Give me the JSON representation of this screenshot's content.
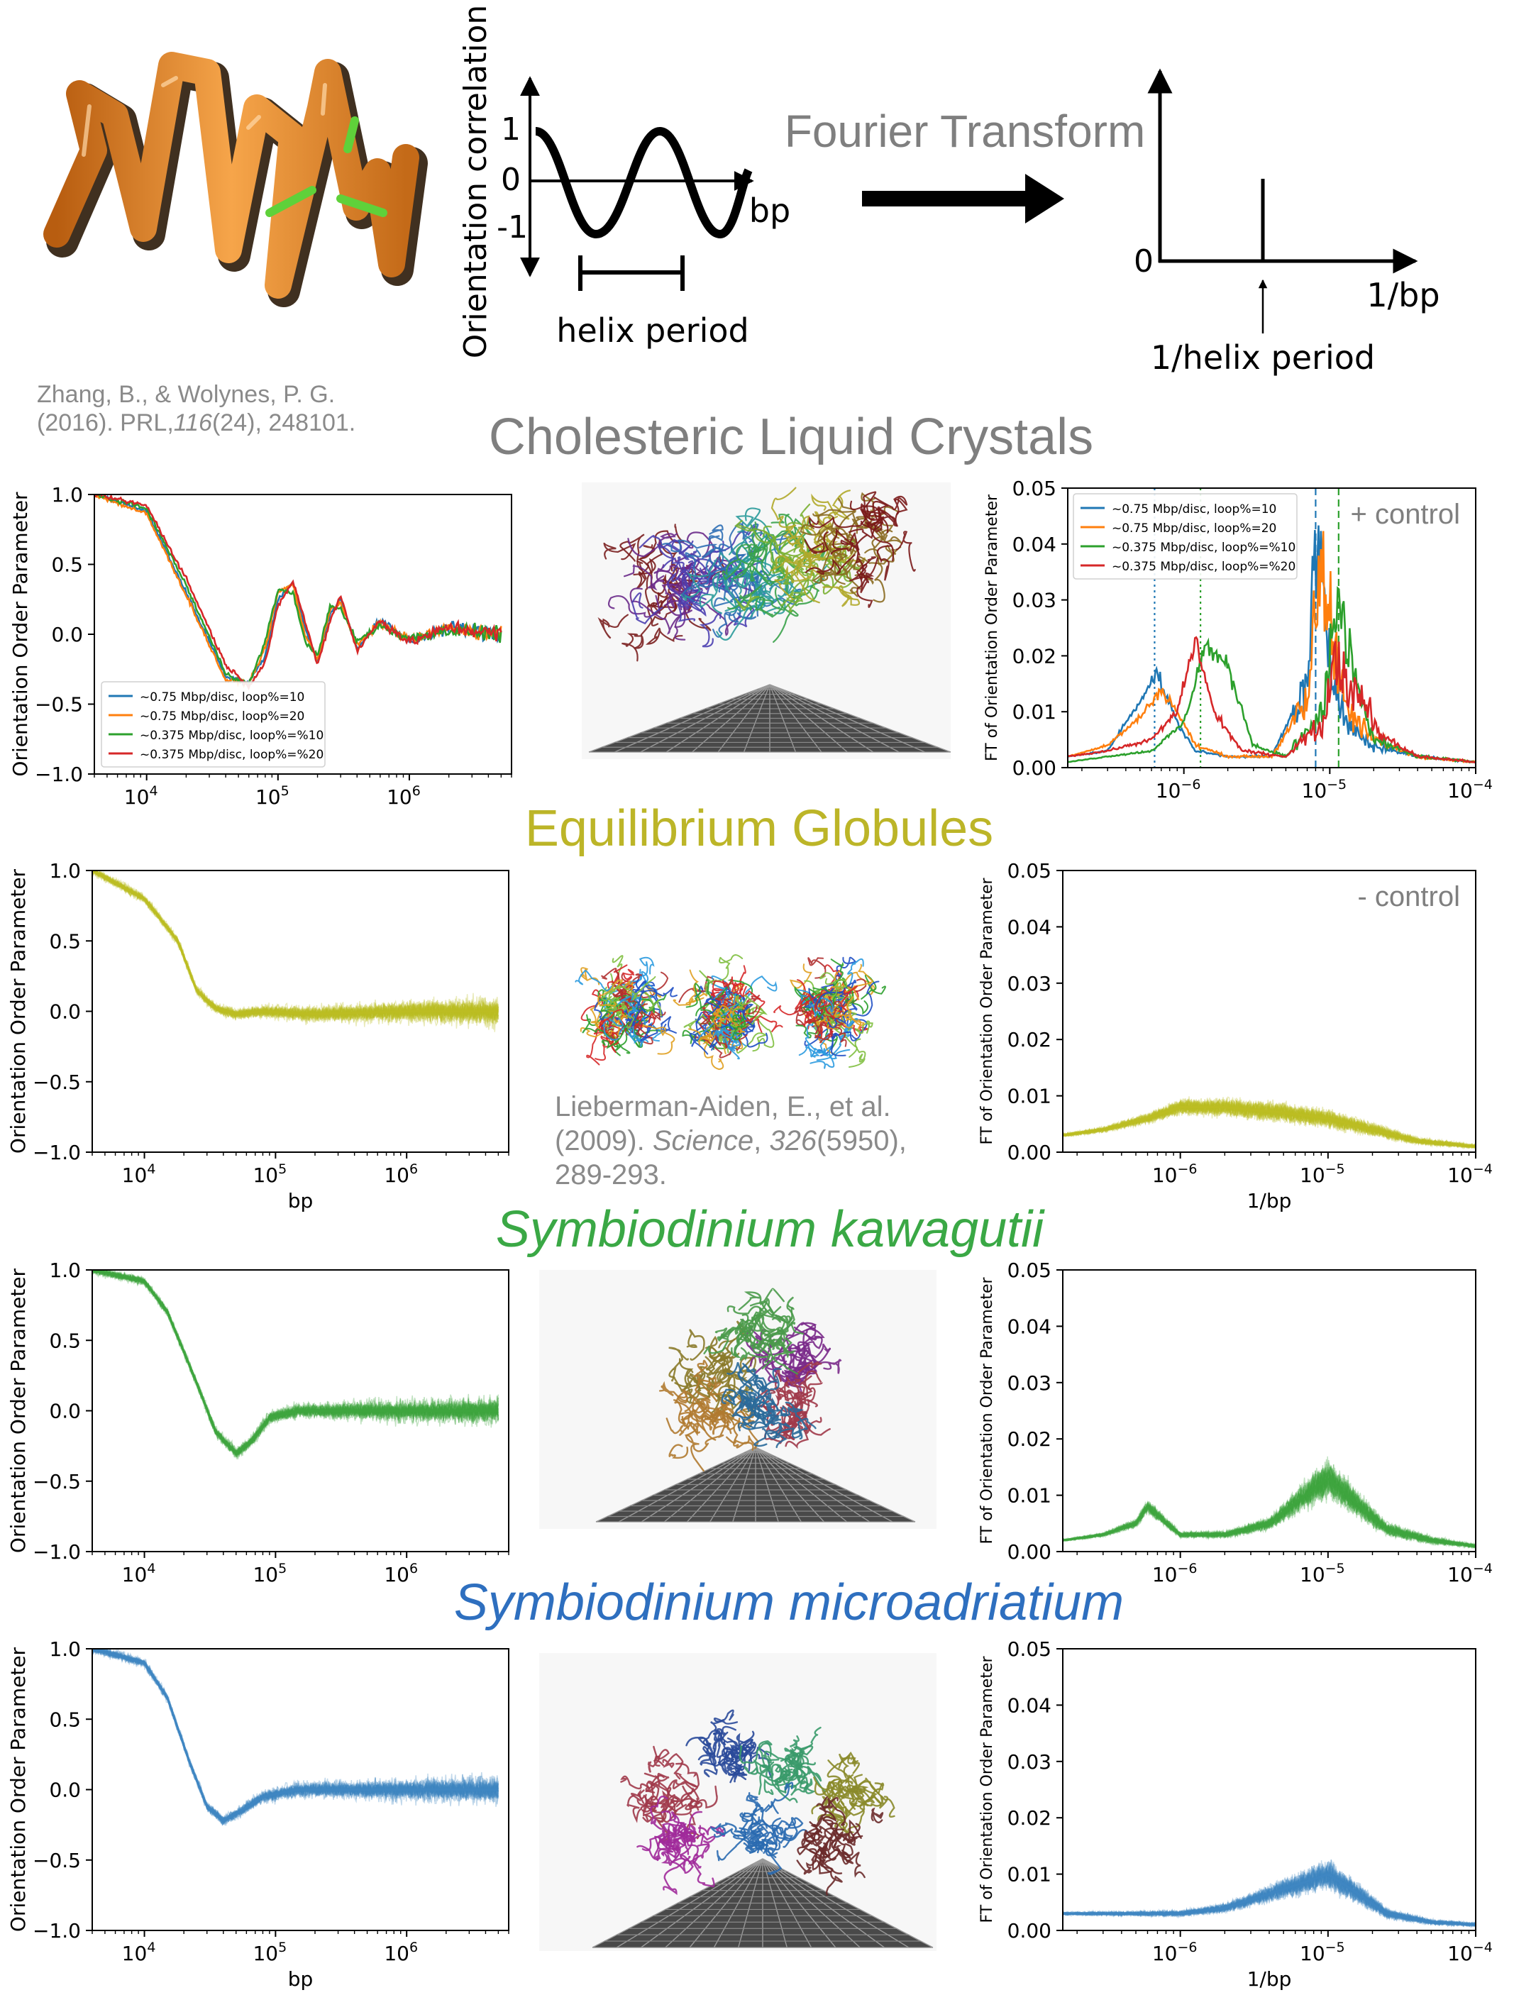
{
  "header": {
    "schematic_ylabel": "Orientation correlation",
    "schematic_xlabel": "bp",
    "schematic_ticks": [
      "1",
      "0",
      "-1"
    ],
    "helix_period_label": "helix period",
    "fourier_label": "Fourier Transform",
    "ft_zero": "0",
    "ft_xlabel": "1/bp",
    "ft_peak_label": "1/helix period",
    "citation_zhang": {
      "line1": "Zhang, B., & Wolynes, P. G.",
      "line2_pre": "(2016). PRL,",
      "line2_italic": "116",
      "line2_post": "(24), 248101."
    },
    "citation_lieberman": {
      "line1": "Lieberman-Aiden, E., et al.",
      "line2_pre": "(2009). ",
      "line2_italic1": "Science",
      "line2_mid": ", ",
      "line2_italic2": "326",
      "line2_post": "(5950),",
      "line3": "289-293."
    }
  },
  "colors": {
    "orange": "#f08c28",
    "blue_title": "#2e6fbf",
    "green_title": "#3aa845",
    "olive_title": "#bcb528",
    "gray_title": "#7f7f7f",
    "tab_blue": "#1f77b4",
    "tab_orange": "#ff7f0e",
    "tab_green": "#2ca02c",
    "tab_red": "#d62728",
    "olive": "#bcbd22",
    "green": "#3ea53e",
    "blue": "#3f86c2"
  },
  "rows": [
    {
      "title": "Cholesteric Liquid Crystals",
      "title_color": "#7f7f7f",
      "title_italic": false,
      "annotation": "+ control",
      "kind": "multi"
    },
    {
      "title": "Equilibrium Globules",
      "title_color": "#bcb528",
      "title_italic": false,
      "annotation": "- control",
      "kind": "olive"
    },
    {
      "title": "Symbiodinium kawagutii",
      "title_color": "#3aa845",
      "title_italic": true,
      "annotation": "",
      "kind": "green"
    },
    {
      "title": "Symbiodinium microadriatium",
      "title_color": "#2e6fbf",
      "title_italic": true,
      "annotation": "",
      "kind": "blue"
    }
  ],
  "chart_data": [
    {
      "type": "line",
      "title": "",
      "xlabel": "",
      "ylabel": "Orientation Order Parameter",
      "xscale": "log",
      "xlim": [
        4000,
        6000000
      ],
      "ylim": [
        -1.0,
        1.0
      ],
      "yticks": [
        "1.0",
        "0.5",
        "0.0",
        "−0.5",
        "−1.0"
      ],
      "xticks": [
        "10^4",
        "10^5",
        "10^6"
      ],
      "legend_position": "lower-left",
      "series": [
        {
          "name": "~0.75 Mbp/disc, loop%=10",
          "color": "#1f77b4",
          "x": [
            4000,
            10000,
            20000,
            40000,
            60000,
            80000,
            100000,
            130000,
            160000,
            200000,
            250000,
            300000,
            400000,
            600000,
            1000000,
            2000000,
            5000000
          ],
          "y": [
            1.0,
            0.88,
            0.3,
            -0.3,
            -0.35,
            -0.15,
            0.25,
            0.38,
            0.05,
            -0.2,
            0.15,
            0.25,
            -0.1,
            0.1,
            -0.05,
            0.05,
            0.0
          ]
        },
        {
          "name": "~0.75 Mbp/disc, loop%=20",
          "color": "#ff7f0e",
          "x": [
            4000,
            10000,
            20000,
            40000,
            60000,
            80000,
            100000,
            130000,
            160000,
            200000,
            250000,
            300000,
            400000,
            600000,
            1000000,
            2000000,
            5000000
          ],
          "y": [
            1.0,
            0.86,
            0.28,
            -0.33,
            -0.35,
            -0.1,
            0.3,
            0.36,
            0.0,
            -0.18,
            0.18,
            0.22,
            -0.08,
            0.08,
            -0.04,
            0.04,
            0.0
          ]
        },
        {
          "name": "~0.375 Mbp/disc, loop%=%10",
          "color": "#2ca02c",
          "x": [
            4000,
            10000,
            20000,
            40000,
            60000,
            80000,
            100000,
            130000,
            160000,
            200000,
            250000,
            300000,
            400000,
            600000,
            1000000,
            2000000,
            5000000
          ],
          "y": [
            1.0,
            0.9,
            0.35,
            -0.28,
            -0.36,
            -0.05,
            0.32,
            0.3,
            -0.05,
            -0.15,
            0.2,
            0.18,
            -0.05,
            0.06,
            -0.03,
            0.03,
            0.0
          ]
        },
        {
          "name": "~0.375 Mbp/disc, loop%=%20",
          "color": "#d62728",
          "x": [
            4000,
            10000,
            20000,
            40000,
            60000,
            80000,
            100000,
            130000,
            160000,
            200000,
            250000,
            300000,
            400000,
            600000,
            1000000,
            2000000,
            5000000
          ],
          "y": [
            1.0,
            0.92,
            0.4,
            -0.22,
            -0.37,
            -0.2,
            0.2,
            0.38,
            0.1,
            -0.22,
            0.1,
            0.28,
            -0.12,
            0.1,
            -0.06,
            0.05,
            0.0
          ]
        }
      ]
    },
    {
      "type": "line",
      "title": "",
      "xlabel": "",
      "ylabel": "FT of Orientation Order Parameter",
      "xscale": "log",
      "xlim": [
        1.6e-07,
        0.0001
      ],
      "ylim": [
        0,
        0.05
      ],
      "yticks": [
        "0.05",
        "0.04",
        "0.03",
        "0.02",
        "0.01",
        "0.00"
      ],
      "xticks": [
        "10^-6",
        "10^-5",
        "10^-4"
      ],
      "legend_position": "top-left",
      "annotation": "+ control",
      "vertical_lines": [
        {
          "x": 6.3e-07,
          "color": "#1f77b4",
          "style": "dotted"
        },
        {
          "x": 1.3e-06,
          "color": "#2ca02c",
          "style": "dotted"
        },
        {
          "x": 8e-06,
          "color": "#1f77b4",
          "style": "dashed"
        },
        {
          "x": 1.15e-05,
          "color": "#2ca02c",
          "style": "dashed"
        }
      ],
      "series": [
        {
          "name": "~0.75 Mbp/disc, loop%=10",
          "color": "#1f77b4",
          "x": [
            1.6e-07,
            3e-07,
            5e-07,
            6.5e-07,
            9e-07,
            1.2e-06,
            2e-06,
            4e-06,
            7e-06,
            8e-06,
            1e-05,
            1.3e-05,
            2e-05,
            4e-05,
            0.0001
          ],
          "y": [
            0.002,
            0.003,
            0.012,
            0.017,
            0.008,
            0.003,
            0.002,
            0.002,
            0.015,
            0.04,
            0.02,
            0.008,
            0.004,
            0.002,
            0.001
          ]
        },
        {
          "name": "~0.75 Mbp/disc, loop%=20",
          "color": "#ff7f0e",
          "x": [
            1.6e-07,
            3e-07,
            5e-07,
            7e-07,
            9e-07,
            1.2e-06,
            2e-06,
            4e-06,
            7e-06,
            8.5e-06,
            1e-05,
            1.3e-05,
            2e-05,
            4e-05,
            0.0001
          ],
          "y": [
            0.002,
            0.004,
            0.009,
            0.014,
            0.01,
            0.004,
            0.002,
            0.002,
            0.012,
            0.037,
            0.028,
            0.01,
            0.005,
            0.002,
            0.001
          ]
        },
        {
          "name": "~0.375 Mbp/disc, loop%=%10",
          "color": "#2ca02c",
          "x": [
            1.6e-07,
            3e-07,
            6e-07,
            1e-06,
            1.4e-06,
            2e-06,
            3e-06,
            5e-06,
            9e-06,
            1.15e-05,
            1.3e-05,
            1.6e-05,
            2e-05,
            4e-05,
            0.0001
          ],
          "y": [
            0.001,
            0.002,
            0.003,
            0.008,
            0.022,
            0.018,
            0.004,
            0.002,
            0.01,
            0.033,
            0.02,
            0.012,
            0.005,
            0.002,
            0.001
          ]
        },
        {
          "name": "~0.375 Mbp/disc, loop%=%20",
          "color": "#d62728",
          "x": [
            1.6e-07,
            3e-07,
            6e-07,
            9e-07,
            1.2e-06,
            1.6e-06,
            2.5e-06,
            5e-06,
            9e-06,
            1.1e-05,
            1.3e-05,
            1.6e-05,
            2.2e-05,
            4e-05,
            0.0001
          ],
          "y": [
            0.002,
            0.003,
            0.005,
            0.01,
            0.023,
            0.01,
            0.003,
            0.002,
            0.008,
            0.022,
            0.015,
            0.013,
            0.006,
            0.002,
            0.001
          ]
        }
      ]
    },
    {
      "type": "line",
      "title": "",
      "xlabel": "bp",
      "ylabel": "Orientation Order Parameter",
      "xscale": "log",
      "xlim": [
        4000,
        6000000
      ],
      "ylim": [
        -1.0,
        1.0
      ],
      "yticks": [
        "1.0",
        "0.5",
        "0.0",
        "−0.5",
        "−1.0"
      ],
      "xticks": [
        "10^4",
        "10^5",
        "10^6"
      ],
      "series": [
        {
          "color": "#bcbd22",
          "x": [
            4000,
            10000,
            18000,
            25000,
            35000,
            50000,
            80000,
            200000,
            1000000,
            5000000
          ],
          "y": [
            1.0,
            0.8,
            0.5,
            0.15,
            0.02,
            -0.02,
            0.0,
            -0.02,
            0.0,
            0.0
          ]
        }
      ]
    },
    {
      "type": "line",
      "title": "",
      "xlabel": "1/bp",
      "ylabel": "FT of Orientation Order Parameter",
      "xscale": "log",
      "xlim": [
        1.6e-07,
        0.0001
      ],
      "ylim": [
        0,
        0.05
      ],
      "yticks": [
        "0.05",
        "0.04",
        "0.03",
        "0.02",
        "0.01",
        "0.00"
      ],
      "xticks": [
        "10^-6",
        "10^-5",
        "10^-4"
      ],
      "annotation": "- control",
      "series": [
        {
          "color": "#bcbd22",
          "x": [
            1.6e-07,
            3e-07,
            6e-07,
            1e-06,
            2e-06,
            5e-06,
            1e-05,
            2e-05,
            4e-05,
            0.0001
          ],
          "y": [
            0.003,
            0.004,
            0.006,
            0.008,
            0.008,
            0.007,
            0.006,
            0.004,
            0.002,
            0.001
          ]
        }
      ]
    },
    {
      "type": "line",
      "title": "",
      "xlabel": "",
      "ylabel": "Orientation Order Parameter",
      "xscale": "log",
      "xlim": [
        4000,
        6000000
      ],
      "ylim": [
        -1.0,
        1.0
      ],
      "yticks": [
        "1.0",
        "0.5",
        "0.0",
        "−0.5",
        "−1.0"
      ],
      "xticks": [
        "10^4",
        "10^5",
        "10^6"
      ],
      "series": [
        {
          "color": "#3ea53e",
          "x": [
            4000,
            10000,
            15000,
            25000,
            35000,
            50000,
            65000,
            90000,
            150000,
            400000,
            1000000,
            5000000
          ],
          "y": [
            1.0,
            0.92,
            0.7,
            0.2,
            -0.15,
            -0.3,
            -0.22,
            -0.05,
            0.0,
            0.0,
            0.0,
            0.0
          ]
        }
      ]
    },
    {
      "type": "line",
      "title": "",
      "xlabel": "",
      "ylabel": "FT of Orientation Order Parameter",
      "xscale": "log",
      "xlim": [
        1.6e-07,
        0.0001
      ],
      "ylim": [
        0,
        0.05
      ],
      "yticks": [
        "0.05",
        "0.04",
        "0.03",
        "0.02",
        "0.01",
        "0.00"
      ],
      "xticks": [
        "10^-6",
        "10^-5",
        "10^-4"
      ],
      "series": [
        {
          "color": "#3ea53e",
          "x": [
            1.6e-07,
            3e-07,
            5e-07,
            6e-07,
            1e-06,
            2e-06,
            4e-06,
            7e-06,
            1e-05,
            1.5e-05,
            2.5e-05,
            5e-05,
            0.0001
          ],
          "y": [
            0.002,
            0.003,
            0.005,
            0.008,
            0.003,
            0.003,
            0.005,
            0.01,
            0.013,
            0.009,
            0.004,
            0.002,
            0.001
          ]
        }
      ]
    },
    {
      "type": "line",
      "title": "",
      "xlabel": "bp",
      "ylabel": "Orientation Order Parameter",
      "xscale": "log",
      "xlim": [
        4000,
        6000000
      ],
      "ylim": [
        -1.0,
        1.0
      ],
      "yticks": [
        "1.0",
        "0.5",
        "0.0",
        "−0.5",
        "−1.0"
      ],
      "xticks": [
        "10^4",
        "10^5",
        "10^6"
      ],
      "series": [
        {
          "color": "#3f86c2",
          "x": [
            4000,
            10000,
            15000,
            22000,
            30000,
            40000,
            55000,
            80000,
            150000,
            400000,
            1000000,
            5000000
          ],
          "y": [
            1.0,
            0.9,
            0.65,
            0.2,
            -0.12,
            -0.22,
            -0.15,
            -0.05,
            0.0,
            0.0,
            0.0,
            0.0
          ]
        }
      ]
    },
    {
      "type": "line",
      "title": "",
      "xlabel": "1/bp",
      "ylabel": "FT of Orientation Order Parameter",
      "xscale": "log",
      "xlim": [
        1.6e-07,
        0.0001
      ],
      "ylim": [
        0,
        0.05
      ],
      "yticks": [
        "0.05",
        "0.04",
        "0.03",
        "0.02",
        "0.01",
        "0.00"
      ],
      "xticks": [
        "10^-6",
        "10^-5",
        "10^-4"
      ],
      "series": [
        {
          "color": "#3f86c2",
          "x": [
            1.6e-07,
            3e-07,
            6e-07,
            1e-06,
            2e-06,
            3.5e-06,
            6e-06,
            1e-05,
            1.5e-05,
            2.5e-05,
            5e-05,
            0.0001
          ],
          "y": [
            0.003,
            0.003,
            0.003,
            0.003,
            0.004,
            0.006,
            0.008,
            0.01,
            0.007,
            0.003,
            0.0015,
            0.001
          ]
        }
      ]
    }
  ]
}
